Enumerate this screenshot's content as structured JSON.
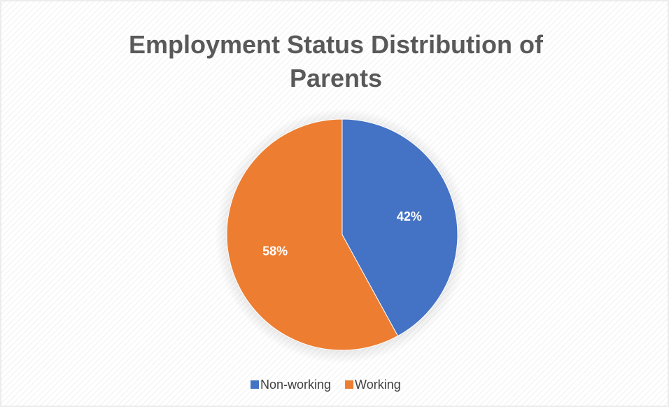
{
  "chart_data": {
    "type": "pie",
    "title": "Employment Status Distribution of Parents",
    "categories": [
      "Non-working",
      "Working"
    ],
    "values": [
      42,
      58
    ],
    "value_labels": [
      "42%",
      "58%"
    ],
    "colors": [
      "#4472c4",
      "#ed7d31"
    ],
    "legend": "bottom"
  }
}
